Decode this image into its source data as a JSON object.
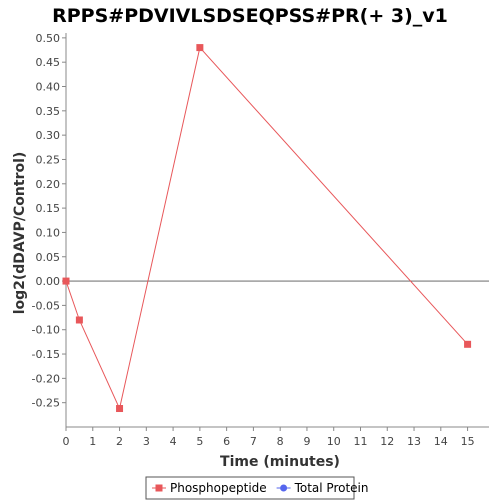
{
  "chart_data": {
    "type": "line",
    "title": "RPPS#PDVIVLSDSEQPSS#PR(+ 3)_v1",
    "xlabel": "Time (minutes)",
    "ylabel": "log2(dDAVP/Control)",
    "xlim": [
      0,
      15.8
    ],
    "ylim": [
      -0.3,
      0.51
    ],
    "x_ticks": [
      0,
      1,
      2,
      3,
      4,
      5,
      6,
      7,
      8,
      9,
      10,
      11,
      12,
      13,
      14,
      15
    ],
    "x_tick_labels": [
      "0",
      "1",
      "2",
      "3",
      "4",
      "5",
      "6",
      "7",
      "8",
      "9",
      "10",
      "11",
      "12",
      "13",
      "14",
      "15"
    ],
    "y_ticks": [
      0.5,
      0.45,
      0.4,
      0.35,
      0.3,
      0.25,
      0.2,
      0.15,
      0.1,
      0.05,
      0.0,
      -0.05,
      -0.1,
      -0.15,
      -0.2,
      -0.25
    ],
    "y_tick_labels": [
      "0.50",
      "0.45",
      "0.40",
      "0.35",
      "0.30",
      "0.25",
      "0.20",
      "0.15",
      "0.10",
      "0.05",
      "0.00",
      "-0.05",
      "-0.10",
      "-0.15",
      "-0.20",
      "-0.25"
    ],
    "grid": false,
    "zero_line": true,
    "legend_position": "bottom",
    "series": [
      {
        "name": "Phosphopeptide",
        "color": "#e8575a",
        "marker": "square",
        "x": [
          0,
          0.5,
          2,
          5,
          15
        ],
        "y": [
          0.0,
          -0.08,
          -0.262,
          0.48,
          -0.13
        ]
      },
      {
        "name": "Total Protein",
        "color": "#5566ee",
        "marker": "circle",
        "x": [],
        "y": []
      }
    ]
  }
}
